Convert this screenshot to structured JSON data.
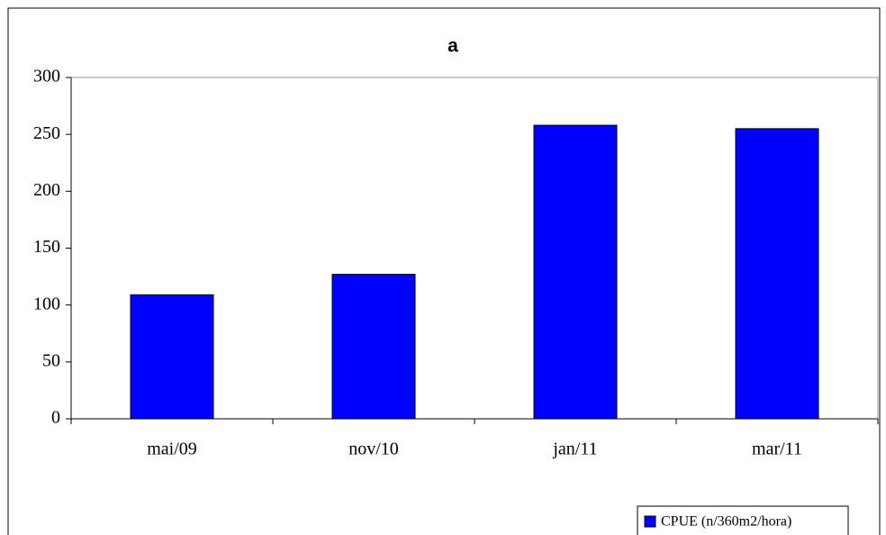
{
  "chart_data": {
    "type": "bar",
    "title": "a",
    "categories": [
      "mai/09",
      "nov/10",
      "jan/11",
      "mar/11"
    ],
    "series": [
      {
        "name": "CPUE (n/360m2/hora)",
        "color": "#0000ff",
        "values": [
          109,
          127,
          258,
          255
        ]
      }
    ],
    "ylim": [
      0,
      300
    ],
    "yticks": [
      0,
      50,
      100,
      150,
      200,
      250,
      300
    ],
    "legend": "bottom-right"
  }
}
